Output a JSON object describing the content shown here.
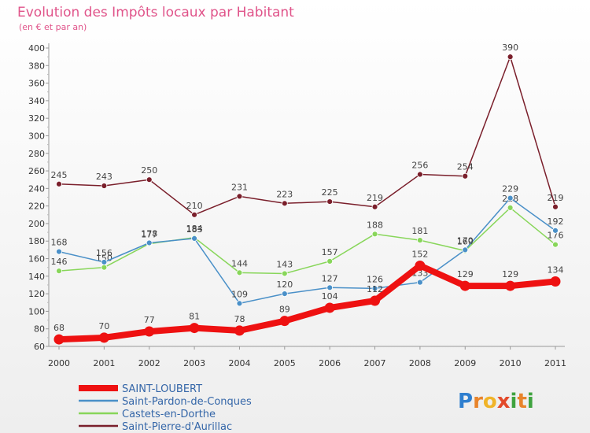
{
  "chart_data": {
    "type": "line",
    "title": "Evolution des Impôts locaux par Habitant",
    "subtitle": "(en € et par an)",
    "xlabel": "",
    "ylabel": "",
    "ylim": [
      60,
      400
    ],
    "ytick_step": 20,
    "grid": false,
    "categories": [
      "2000",
      "2001",
      "2002",
      "2003",
      "2004",
      "2005",
      "2006",
      "2007",
      "2008",
      "2009",
      "2010",
      "2011"
    ],
    "series": [
      {
        "name": "Saint-Pierre-d'Aurillac",
        "color": "#7a1f2b",
        "values": [
          245,
          243,
          250,
          210,
          231,
          223,
          225,
          219,
          256,
          254,
          390,
          219
        ],
        "labels": [
          "245",
          "243",
          "250",
          "210",
          "231",
          "223",
          "225",
          "219",
          "256",
          "254",
          "390",
          "219"
        ]
      },
      {
        "name": "Castets-en-Dorthe",
        "color": "#88d65a",
        "values": [
          146,
          150,
          177,
          184,
          144,
          143,
          157,
          188,
          181,
          169,
          218,
          176
        ],
        "labels": [
          "146",
          "150",
          "177",
          "184",
          "144",
          "143",
          "157",
          "188",
          "181",
          "169",
          "218",
          "176"
        ]
      },
      {
        "name": "Saint-Pardon-de-Conques",
        "color": "#4a90c8",
        "values": [
          168,
          156,
          178,
          183,
          109,
          120,
          127,
          126,
          133,
          170,
          229,
          192
        ],
        "labels": [
          "168",
          "156",
          "178",
          "183",
          "109",
          "120",
          "127",
          "126",
          "133",
          "170",
          "229",
          "192"
        ]
      },
      {
        "name": "SAINT-LOUBERT",
        "color": "#ee1111",
        "values": [
          68,
          70,
          77,
          81,
          78,
          89,
          104,
          112,
          152,
          129,
          129,
          134
        ],
        "labels": [
          "68",
          "70",
          "77",
          "81",
          "78",
          "89",
          "104",
          "112",
          "152",
          "129",
          "129",
          "134"
        ]
      }
    ],
    "legend": [
      {
        "name": "SAINT-LOUBERT",
        "color": "#ee1111"
      },
      {
        "name": "Saint-Pardon-de-Conques",
        "color": "#4a90c8"
      },
      {
        "name": "Castets-en-Dorthe",
        "color": "#88d65a"
      },
      {
        "name": "Saint-Pierre-d'Aurillac",
        "color": "#7a1f2b"
      }
    ],
    "legend_position": "bottom-left",
    "colors": {
      "title": "#e0548a",
      "axis": "#999999",
      "text": "#333333"
    }
  },
  "logo": {
    "text": "Proxiti",
    "letters": [
      "P",
      "r",
      "o",
      "x",
      "i",
      "t",
      "i"
    ],
    "colors": [
      "#2f7fcf",
      "#e8842b",
      "#f0b429",
      "#e34a2a",
      "#3fa33f",
      "#e8842b",
      "#3fa33f"
    ]
  }
}
